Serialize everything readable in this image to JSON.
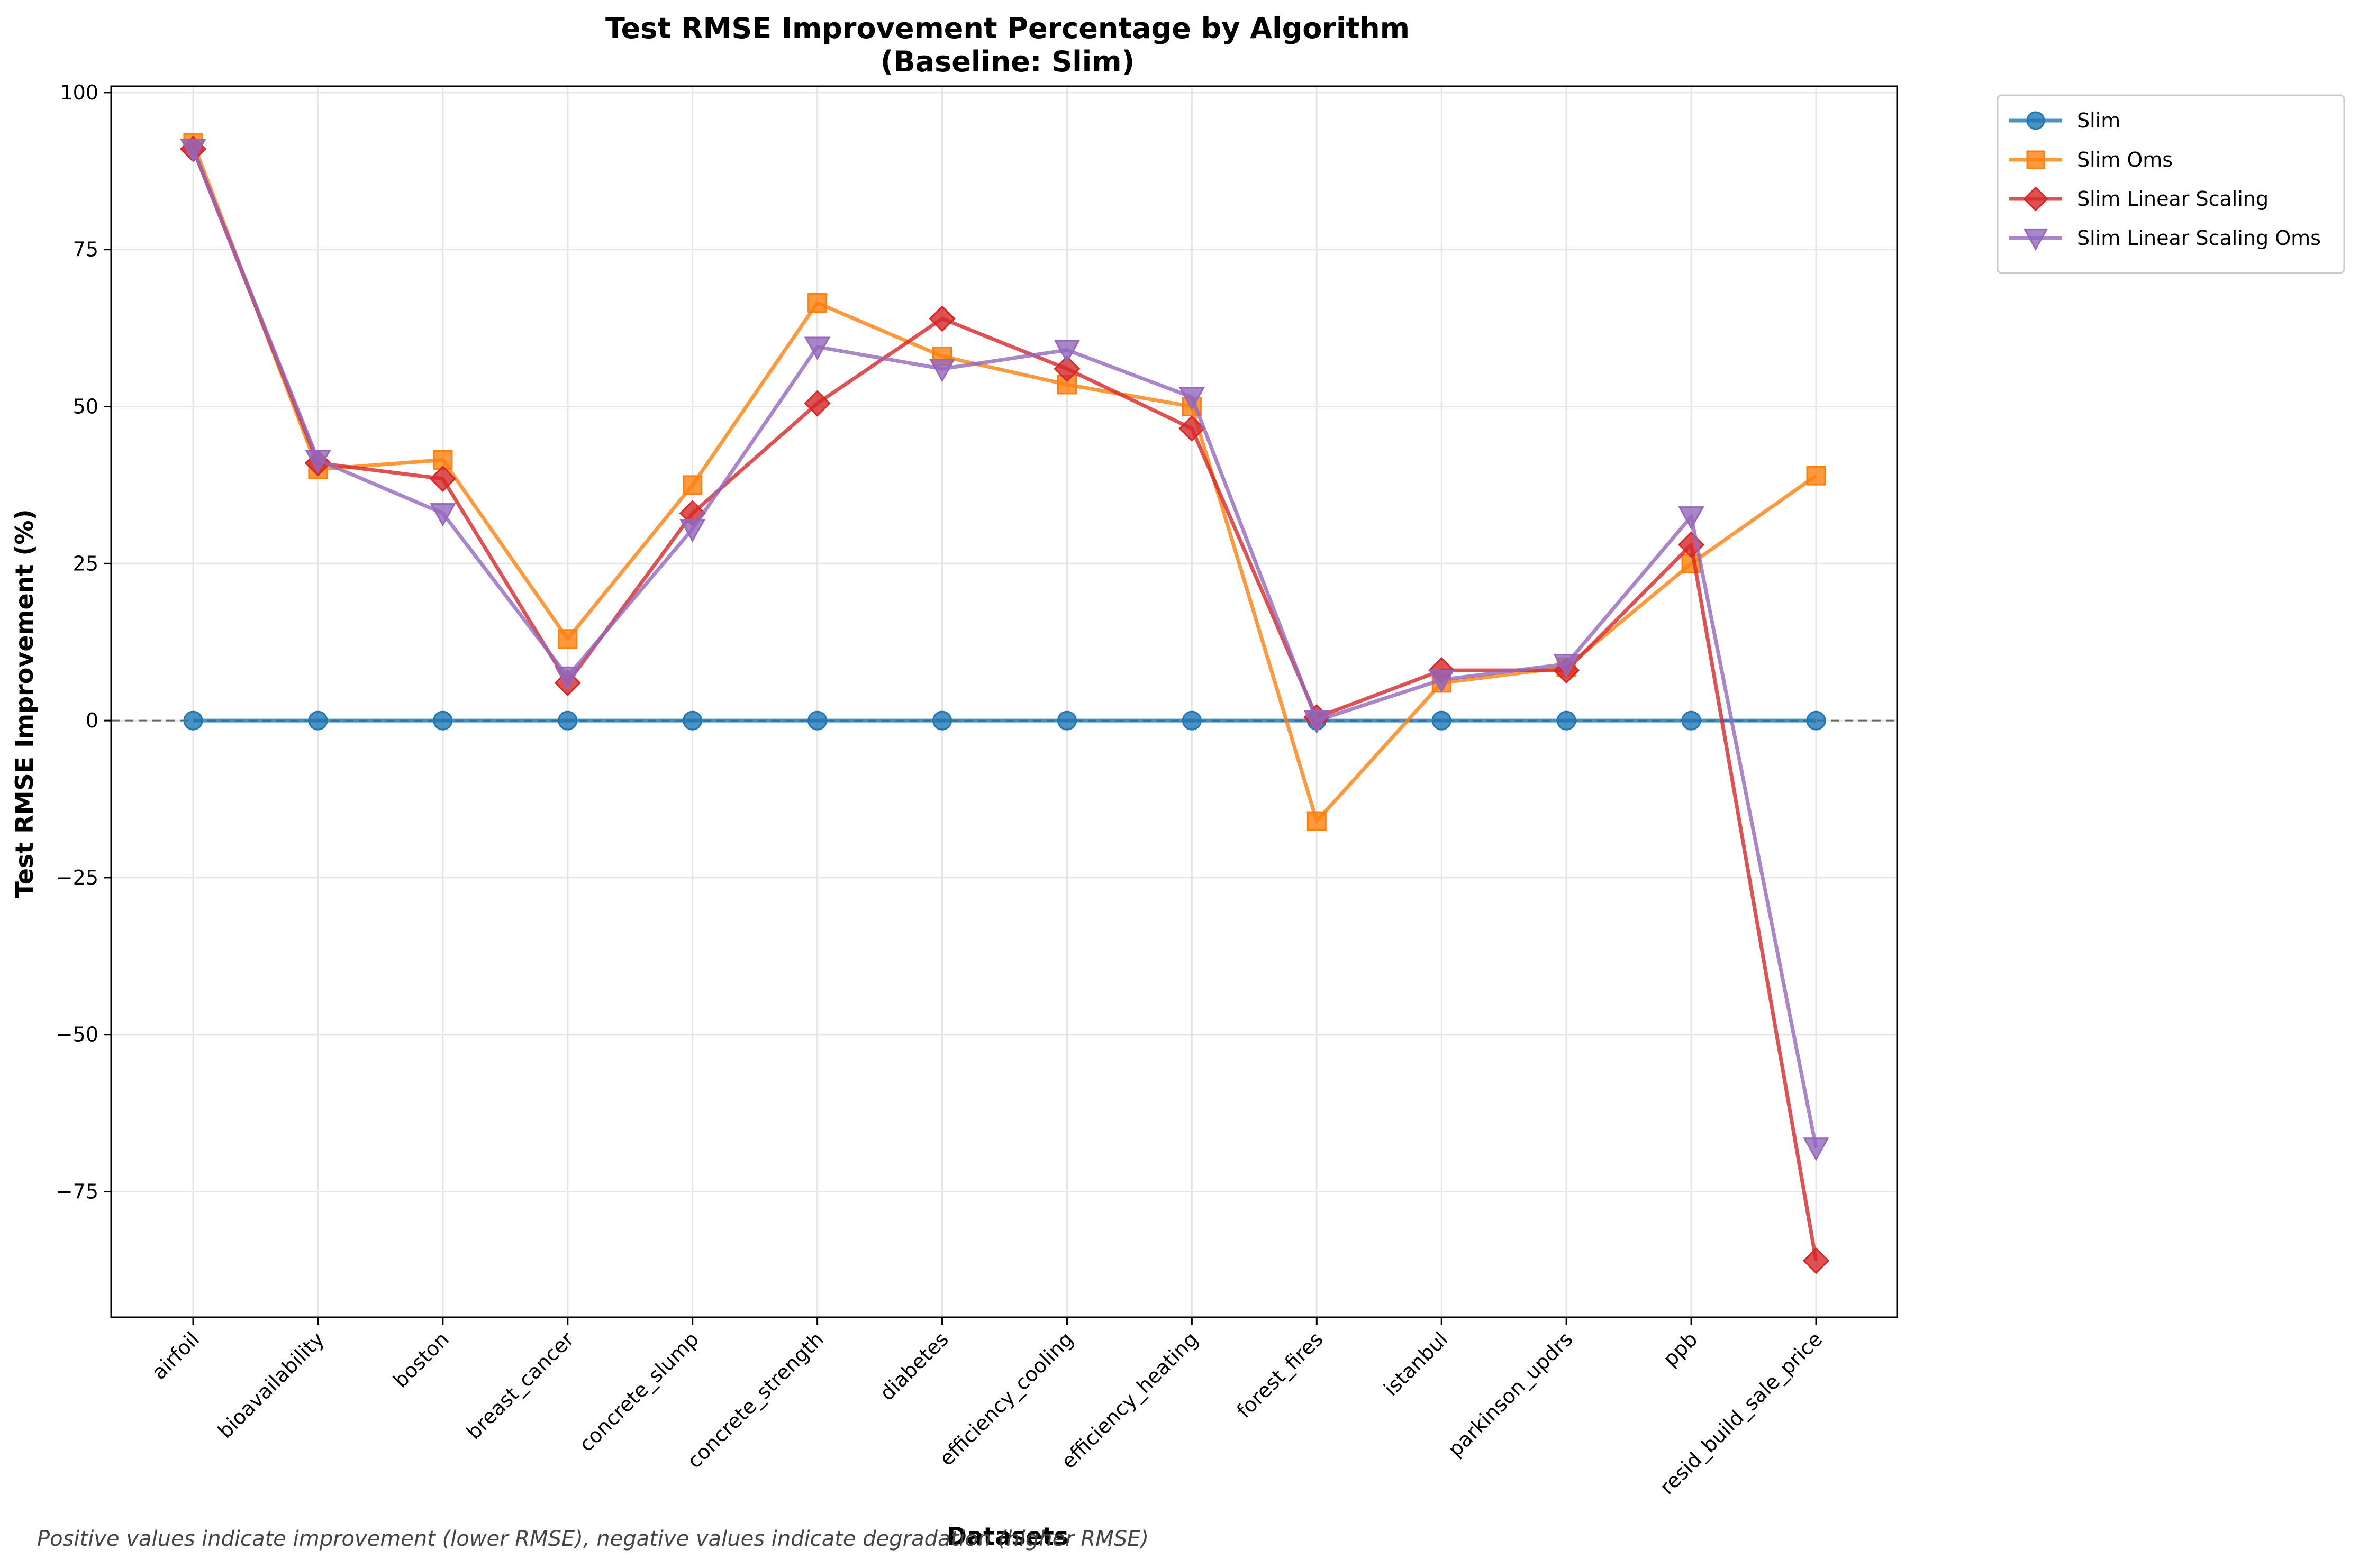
{
  "chart_data": {
    "type": "line",
    "title": "Test RMSE Improvement Percentage by Algorithm",
    "subtitle": "(Baseline: Slim)",
    "xlabel": "Datasets",
    "ylabel": "Test RMSE Improvement (%)",
    "footnote": "Positive values indicate improvement (lower RMSE), negative values indicate degradation (higher RMSE)",
    "categories": [
      "airfoil",
      "bioavailability",
      "boston",
      "breast_cancer",
      "concrete_slump",
      "concrete_strength",
      "diabetes",
      "efficiency_cooling",
      "efficiency_heating",
      "forest_fires",
      "istanbul",
      "parkinson_updrs",
      "ppb",
      "resid_build_sale_price"
    ],
    "ylim": [
      -95,
      101
    ],
    "yticks": [
      -75,
      -50,
      -25,
      0,
      25,
      50,
      75,
      100
    ],
    "ytick_labels": [
      "−75",
      "−50",
      "−25",
      "0",
      "25",
      "50",
      "75",
      "100"
    ],
    "grid": true,
    "reference_line": 0,
    "legend_position": "outside-top-right",
    "series": [
      {
        "name": "Slim",
        "color": "#1f77b4",
        "marker": "circle",
        "values": [
          0,
          0,
          0,
          0,
          0,
          0,
          0,
          0,
          0,
          0,
          0,
          0,
          0,
          0
        ]
      },
      {
        "name": "Slim Oms",
        "color": "#ff7f0e",
        "marker": "square",
        "values": [
          92,
          40,
          41.5,
          13,
          37.5,
          66.5,
          58,
          53.5,
          50,
          -16,
          6,
          8.5,
          25,
          39
        ]
      },
      {
        "name": "Slim Linear Scaling",
        "color": "#d62728",
        "marker": "diamond",
        "values": [
          91,
          41,
          38.5,
          6,
          33,
          50.5,
          64,
          56,
          46.5,
          0.5,
          8,
          8,
          28,
          -86
        ]
      },
      {
        "name": "Slim Linear Scaling Oms",
        "color": "#9467bd",
        "marker": "triangle-down",
        "values": [
          91,
          41.5,
          33,
          7,
          30.5,
          59.5,
          56,
          59,
          51.5,
          0,
          6.5,
          9,
          32.5,
          -68
        ]
      }
    ]
  }
}
